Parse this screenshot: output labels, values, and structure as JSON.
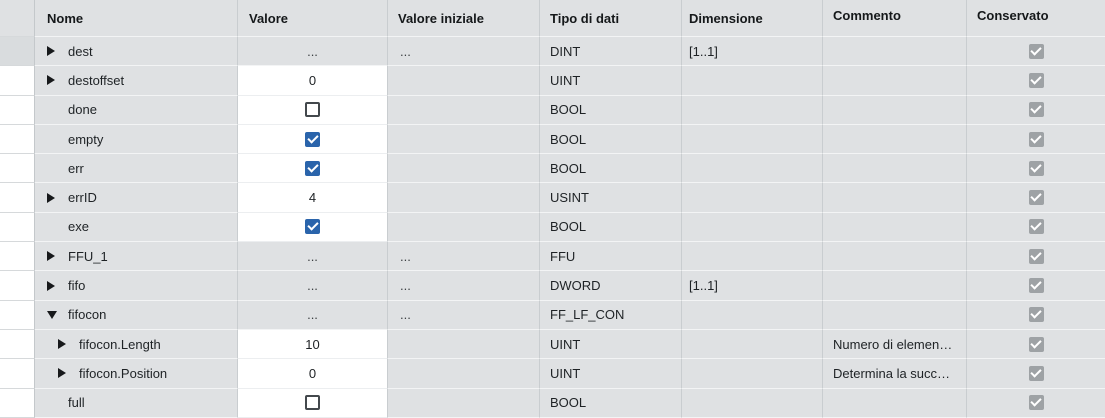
{
  "colors": {
    "row_bg": "#dfe1e3",
    "editable_bg": "#ffffff",
    "checkbox_checked_blue": "#2a64ab",
    "checkbox_checked_gray": "#9ea2a5",
    "selected_gutter": "#d9dcde"
  },
  "table": {
    "columns": [
      {
        "key": "nome",
        "label": "Nome",
        "align_top": false
      },
      {
        "key": "valore",
        "label": "Valore",
        "align_top": false
      },
      {
        "key": "valore_iniziale",
        "label": "Valore iniziale",
        "align_top": false
      },
      {
        "key": "tipo",
        "label": "Tipo di dati",
        "align_top": false
      },
      {
        "key": "dimensione",
        "label": "Dimensione",
        "align_top": false
      },
      {
        "key": "commento",
        "label": "Commento",
        "align_top": true
      },
      {
        "key": "conservato",
        "label": "Conservato",
        "align_top": true
      }
    ],
    "rows": [
      {
        "name": "dest",
        "level": 1,
        "expander": "collapsed",
        "selected": true,
        "value": {
          "kind": "dots",
          "text": "...",
          "editable": false
        },
        "initial": "...",
        "datatype": "DINT",
        "dimension": "[1..1]",
        "comment": "",
        "retained": true
      },
      {
        "name": "destoffset",
        "level": 1,
        "expander": "collapsed",
        "selected": false,
        "value": {
          "kind": "text",
          "text": "0",
          "editable": true
        },
        "initial": "",
        "datatype": "UINT",
        "dimension": "",
        "comment": "",
        "retained": true
      },
      {
        "name": "done",
        "level": 1,
        "expander": "none",
        "selected": false,
        "value": {
          "kind": "checkbox",
          "checked": false,
          "editable": true
        },
        "initial": "",
        "datatype": "BOOL",
        "dimension": "",
        "comment": "",
        "retained": true
      },
      {
        "name": "empty",
        "level": 1,
        "expander": "none",
        "selected": false,
        "value": {
          "kind": "checkbox",
          "checked": true,
          "editable": true
        },
        "initial": "",
        "datatype": "BOOL",
        "dimension": "",
        "comment": "",
        "retained": true
      },
      {
        "name": "err",
        "level": 1,
        "expander": "none",
        "selected": false,
        "value": {
          "kind": "checkbox",
          "checked": true,
          "editable": true
        },
        "initial": "",
        "datatype": "BOOL",
        "dimension": "",
        "comment": "",
        "retained": true
      },
      {
        "name": "errID",
        "level": 1,
        "expander": "collapsed",
        "selected": false,
        "value": {
          "kind": "text",
          "text": "4",
          "editable": true
        },
        "initial": "",
        "datatype": "USINT",
        "dimension": "",
        "comment": "",
        "retained": true
      },
      {
        "name": "exe",
        "level": 1,
        "expander": "none",
        "selected": false,
        "value": {
          "kind": "checkbox",
          "checked": true,
          "editable": true
        },
        "initial": "",
        "datatype": "BOOL",
        "dimension": "",
        "comment": "",
        "retained": true
      },
      {
        "name": "FFU_1",
        "level": 1,
        "expander": "collapsed",
        "selected": false,
        "value": {
          "kind": "dots",
          "text": "...",
          "editable": false
        },
        "initial": "...",
        "datatype": "FFU",
        "dimension": "",
        "comment": "",
        "retained": true
      },
      {
        "name": "fifo",
        "level": 1,
        "expander": "collapsed",
        "selected": false,
        "value": {
          "kind": "dots",
          "text": "...",
          "editable": false
        },
        "initial": "...",
        "datatype": "DWORD",
        "dimension": "[1..1]",
        "comment": "",
        "retained": true
      },
      {
        "name": "fifocon",
        "level": 1,
        "expander": "expanded",
        "selected": false,
        "value": {
          "kind": "dots",
          "text": "...",
          "editable": false
        },
        "initial": "...",
        "datatype": "FF_LF_CON",
        "dimension": "",
        "comment": "",
        "retained": true
      },
      {
        "name": "fifocon.Length",
        "level": 2,
        "expander": "collapsed",
        "selected": false,
        "value": {
          "kind": "text",
          "text": "10",
          "editable": true
        },
        "initial": "",
        "datatype": "UINT",
        "dimension": "",
        "comment": "Numero di elemen…",
        "retained": true
      },
      {
        "name": "fifocon.Position",
        "level": 2,
        "expander": "collapsed",
        "selected": false,
        "value": {
          "kind": "text",
          "text": "0",
          "editable": true
        },
        "initial": "",
        "datatype": "UINT",
        "dimension": "",
        "comment": "Determina la succ…",
        "retained": true
      },
      {
        "name": "full",
        "level": 1,
        "expander": "none",
        "selected": false,
        "value": {
          "kind": "checkbox",
          "checked": false,
          "editable": true
        },
        "initial": "",
        "datatype": "BOOL",
        "dimension": "",
        "comment": "",
        "retained": true
      }
    ]
  }
}
